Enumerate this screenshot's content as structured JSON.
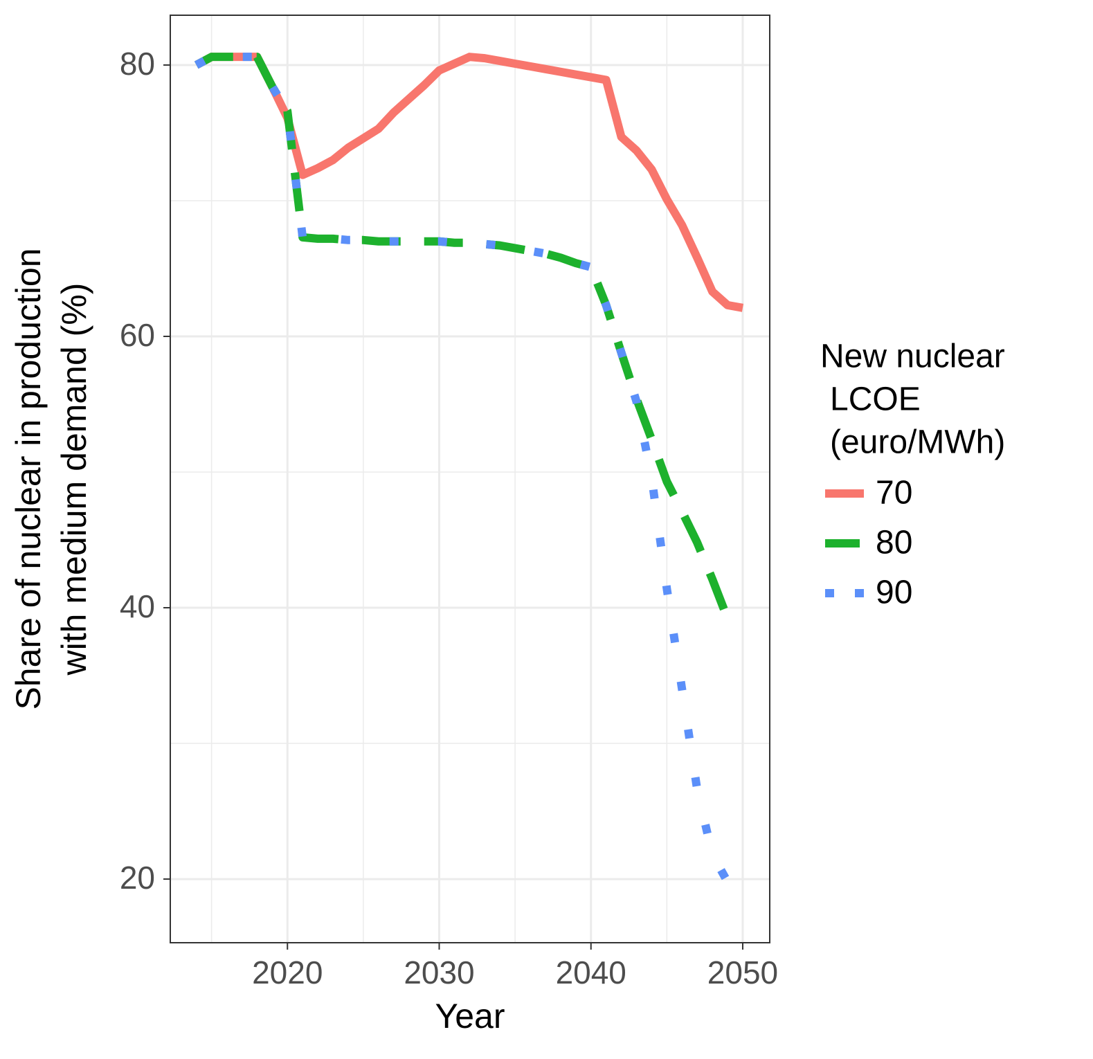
{
  "chart_data": {
    "type": "line",
    "x_label": "Year",
    "y_label": [
      "Share of nuclear in production",
      "with medium demand (%)"
    ],
    "legend_title": [
      "New nuclear",
      "LCOE",
      "(euro/MWh)"
    ],
    "legend_position": "right",
    "grid": true,
    "x": [
      2014,
      2015,
      2016,
      2017,
      2018,
      2019,
      2020,
      2021,
      2022,
      2023,
      2024,
      2025,
      2026,
      2027,
      2028,
      2029,
      2030,
      2031,
      2032,
      2033,
      2034,
      2035,
      2036,
      2037,
      2038,
      2039,
      2040,
      2041,
      2042,
      2043,
      2044,
      2045,
      2046,
      2047,
      2048,
      2049,
      2050
    ],
    "xlim": [
      2012.28,
      2051.78
    ],
    "xticks": [
      2020,
      2030,
      2040,
      2050
    ],
    "ylim": [
      15.31,
      83.67
    ],
    "yticks": [
      20,
      40,
      60,
      80
    ],
    "series": [
      {
        "name": "70",
        "color": "#f8766d",
        "style": "solid",
        "values": [
          80,
          80.6,
          80.6,
          80.6,
          80.6,
          78.4,
          76.1,
          71.9,
          72.4,
          73.0,
          73.9,
          74.6,
          75.3,
          76.5,
          77.5,
          78.5,
          79.6,
          80.1,
          80.6,
          80.5,
          80.3,
          80.1,
          79.9,
          79.7,
          79.5,
          79.3,
          79.1,
          78.9,
          74.7,
          73.7,
          72.3,
          70.1,
          68.2,
          65.8,
          63.3,
          62.3,
          62.1
        ]
      },
      {
        "name": "80",
        "color": "#1db12d",
        "style": "dashed",
        "values": [
          80,
          80.6,
          80.6,
          80.6,
          80.6,
          78.4,
          76.6,
          67.3,
          67.2,
          67.2,
          67.1,
          67.1,
          67.0,
          67.0,
          67.0,
          67.0,
          67.0,
          66.9,
          66.9,
          66.8,
          66.7,
          66.5,
          66.3,
          66.1,
          65.8,
          65.4,
          65.1,
          62.3,
          58.8,
          55.4,
          52.4,
          49.3,
          47.1,
          44.8,
          42.1,
          39.2,
          null
        ]
      },
      {
        "name": "90",
        "color": "#5b8ff9",
        "style": "dotted",
        "values": [
          80,
          80.6,
          80.6,
          80.6,
          80.6,
          78.4,
          76.6,
          67.3,
          67.2,
          67.2,
          67.1,
          67.1,
          67.0,
          67.0,
          67.0,
          67.0,
          67.0,
          66.9,
          66.9,
          66.8,
          66.7,
          66.5,
          66.3,
          66.1,
          65.8,
          65.4,
          65.1,
          62.3,
          58.8,
          55.2,
          49.6,
          41.4,
          34.0,
          26.6,
          21.8,
          19.8,
          null
        ]
      }
    ]
  }
}
